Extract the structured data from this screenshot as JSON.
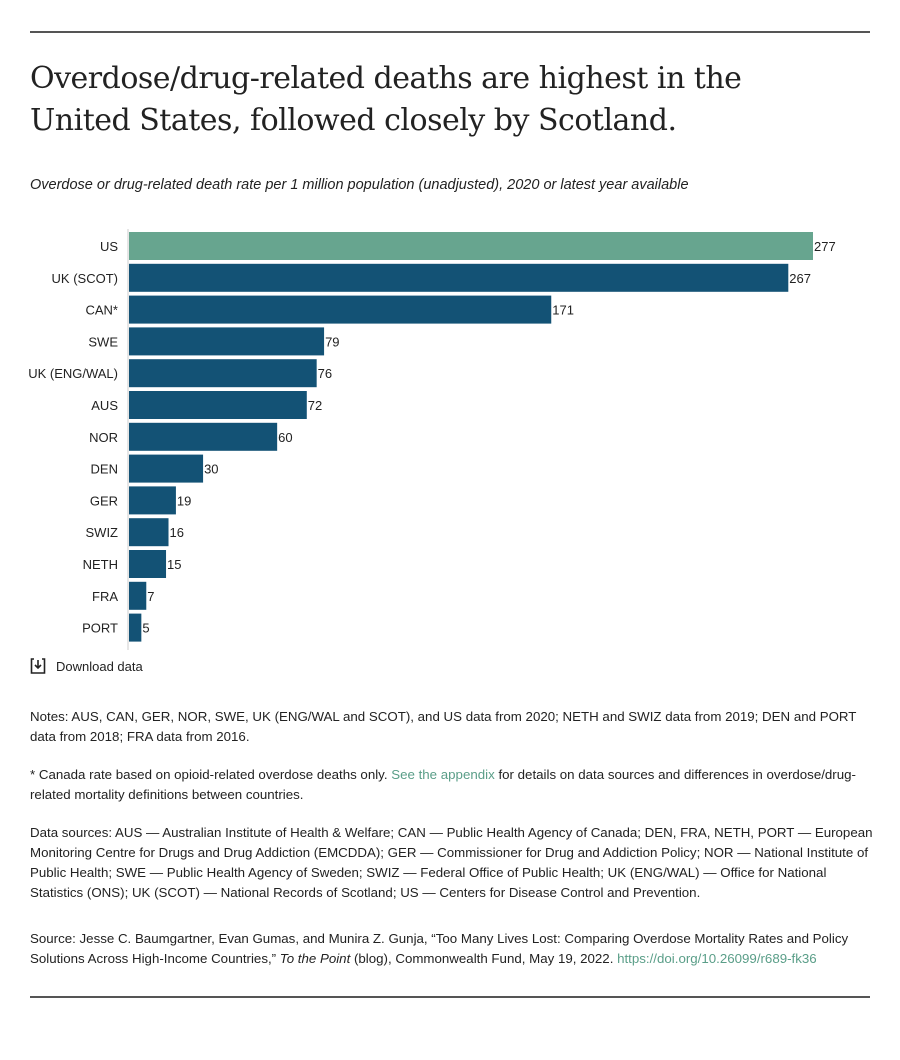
{
  "title": "Overdose/drug-related deaths are highest in the United States, followed closely by Scotland.",
  "subtitle": "Overdose or drug-related death rate per 1 million population (unadjusted), 2020 or latest year available",
  "download_label": "Download data",
  "chart_data": {
    "type": "bar",
    "orientation": "horizontal",
    "categories": [
      "US",
      "UK (SCOT)",
      "CAN*",
      "SWE",
      "UK (ENG/WAL)",
      "AUS",
      "NOR",
      "DEN",
      "GER",
      "SWIZ",
      "NETH",
      "FRA",
      "PORT"
    ],
    "values": [
      277,
      267,
      171,
      79,
      76,
      72,
      60,
      30,
      19,
      16,
      15,
      7,
      5
    ],
    "xlim": [
      0,
      277
    ],
    "grid": false,
    "colors": {
      "highlight": "#67a58f",
      "default": "#135275"
    }
  },
  "notes": {
    "note1": "Notes: AUS, CAN, GER, NOR, SWE, UK (ENG/WAL and SCOT), and US data from 2020; NETH and SWIZ data from 2019; DEN and PORT data from 2018; FRA data from 2016.",
    "note2_pre": "* Canada rate based on opioid-related overdose deaths only. ",
    "note2_link": "See the appendix",
    "note2_post": " for details on data sources and differences in overdose/drug-related mortality definitions between countries.",
    "sources": "Data sources: AUS — Australian Institute of Health & Welfare; CAN — Public Health Agency of Canada; DEN, FRA, NETH, PORT — European Monitoring Centre for Drugs and Drug Addiction (EMCDDA); GER — Commissioner for Drug and Addiction Policy; NOR — National Institute of Public Health; SWE — Public Health Agency of Sweden; SWIZ — Federal Office of Public Health; UK (ENG/WAL) — Office for National Statistics (ONS); UK (SCOT) — National Records of Scotland; US — Centers for Disease Control and Prevention.",
    "source_pre": "Source: Jesse C. Baumgartner, Evan Gumas, and Munira Z. Gunja, “Too Many Lives Lost: Comparing Overdose Mortality Rates and Policy Solutions Across High-Income Countries,” ",
    "source_italic": "To the Point",
    "source_post": " (blog), Commonwealth Fund, May 19, 2022. ",
    "source_link": "https://doi.org/10.26099/r689-fk36"
  }
}
